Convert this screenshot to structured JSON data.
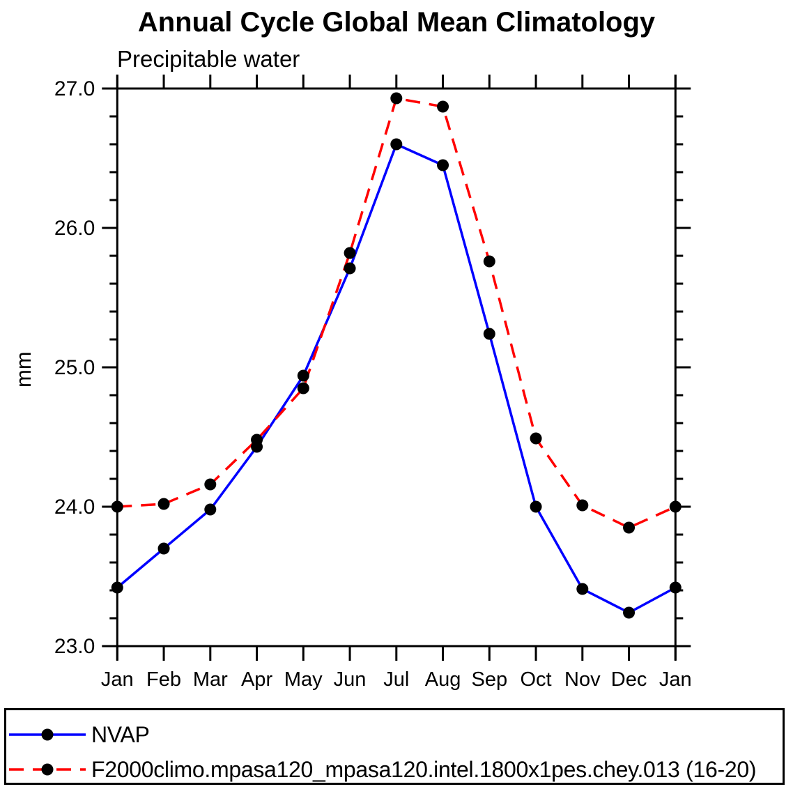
{
  "chart_data": {
    "type": "line",
    "title": "Annual Cycle Global Mean Climatology",
    "subtitle": "Precipitable water",
    "ylabel": "mm",
    "xlabel": "",
    "categories": [
      "Jan",
      "Feb",
      "Mar",
      "Apr",
      "May",
      "Jun",
      "Jul",
      "Aug",
      "Sep",
      "Oct",
      "Nov",
      "Dec",
      "Jan"
    ],
    "ylim": [
      23.0,
      27.0
    ],
    "y_major_step": 1.0,
    "y_minor_step": 0.2,
    "y_major_tick_labels": [
      "23.0",
      "24.0",
      "25.0",
      "26.0",
      "27.0"
    ],
    "grid": false,
    "axis_color": "#000000",
    "marker_shape": "filled-circle",
    "legend_position": "bottom-box",
    "series": [
      {
        "name": "NVAP",
        "line_style": "solid",
        "color": "#0000ff",
        "marker": "filled-circle",
        "marker_color": "#000000",
        "values": [
          23.42,
          23.7,
          23.98,
          24.43,
          24.94,
          25.71,
          26.6,
          26.45,
          25.24,
          24.0,
          23.41,
          23.24,
          23.42
        ]
      },
      {
        "name": "F2000climo.mpasa120_mpasa120.intel.1800x1pes.chey.013 (16-20)",
        "line_style": "dashed",
        "color": "#ff0000",
        "marker": "filled-circle",
        "marker_color": "#000000",
        "values": [
          24.0,
          24.02,
          24.16,
          24.48,
          24.85,
          25.82,
          26.93,
          26.87,
          25.76,
          24.49,
          24.01,
          23.85,
          24.0
        ]
      }
    ]
  }
}
